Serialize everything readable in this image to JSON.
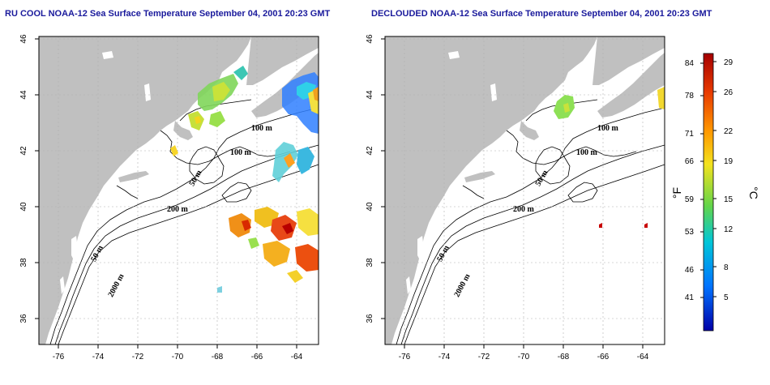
{
  "panels": [
    {
      "title": "RU COOL NOAA-12 Sea Surface Temperature September 04, 2001 20:23 GMT",
      "contour_labels": [
        "100 m",
        "100 m",
        "50 m",
        "200 m",
        "50 m",
        "2000 m"
      ]
    },
    {
      "title": "DECLOUDED NOAA-12 Sea Surface Temperature September 04, 2001 20:23 GMT",
      "contour_labels": [
        "100 m",
        "100 m",
        "50 m",
        "200 m",
        "50 m",
        "2000 m"
      ]
    }
  ],
  "axes": {
    "lon_ticks": [
      "-76",
      "-74",
      "-72",
      "-70",
      "-68",
      "-66",
      "-64"
    ],
    "lat_ticks": [
      "46",
      "44",
      "42",
      "40",
      "38",
      "36"
    ]
  },
  "colorbar": {
    "fahrenheit_ticks": [
      "84",
      "78",
      "71",
      "66",
      "59",
      "53",
      "46",
      "41"
    ],
    "celsius_ticks": [
      "29",
      "26",
      "22",
      "19",
      "15",
      "12",
      "8",
      "5"
    ],
    "unit_f": "°F",
    "unit_c": "°C"
  },
  "colors": {
    "land": "#c0c0c0",
    "ocean": "#ffffff",
    "grid": "#b0b0b0",
    "title": "#1a1a9c",
    "colorbar_stops": [
      "#a50000",
      "#e83a00",
      "#ff9800",
      "#f3e21e",
      "#63d54a",
      "#00c6d8",
      "#0073ff",
      "#0000a8"
    ]
  }
}
